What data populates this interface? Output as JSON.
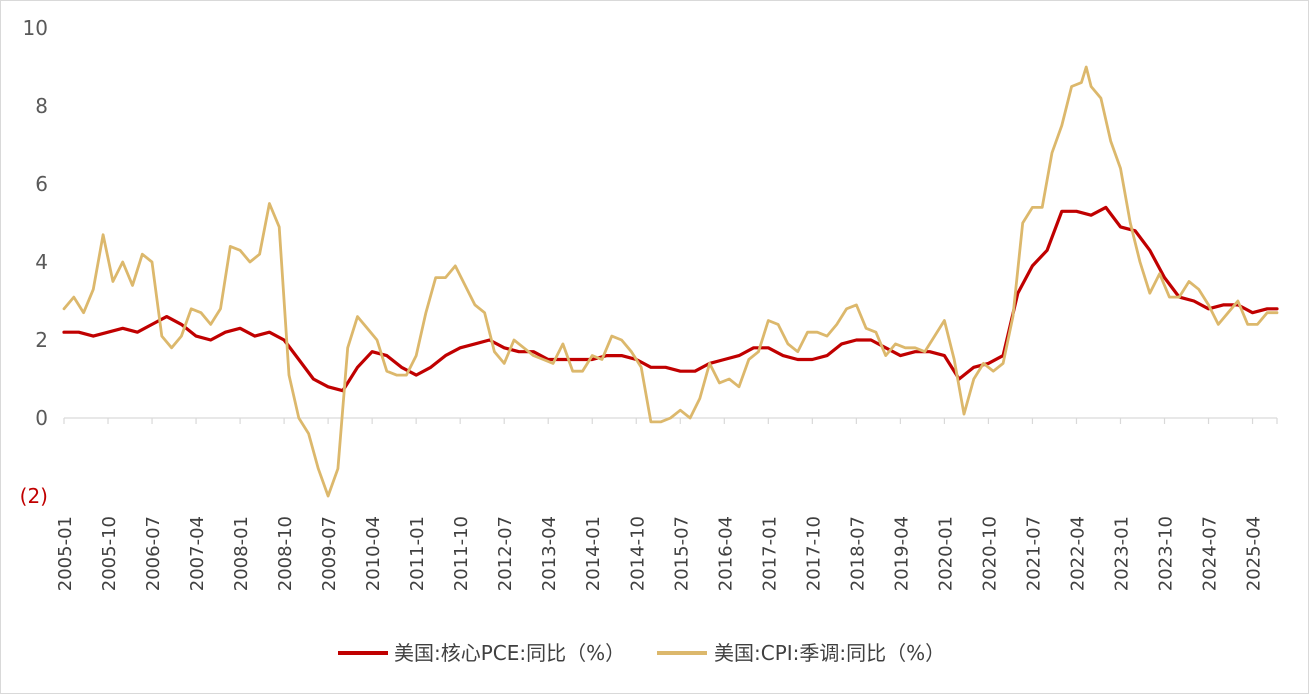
{
  "chart_data": {
    "type": "line",
    "title": "",
    "xlabel": "",
    "ylabel": "",
    "ylim": [
      -2,
      10
    ],
    "yticks": [
      -2,
      0,
      2,
      4,
      6,
      8,
      10
    ],
    "ytick_labels": [
      "(2)",
      "0",
      "2",
      "4",
      "6",
      "8",
      "10"
    ],
    "xtick_labels": [
      "2005-01",
      "2005-10",
      "2006-07",
      "2007-04",
      "2008-01",
      "2008-10",
      "2009-07",
      "2010-04",
      "2011-01",
      "2011-10",
      "2012-07",
      "2013-04",
      "2014-01",
      "2014-10",
      "2015-07",
      "2016-04",
      "2017-01",
      "2017-10",
      "2018-07",
      "2019-04",
      "2020-01",
      "2020-10",
      "2021-07",
      "2022-04",
      "2023-01",
      "2023-10",
      "2024-07",
      "2025-04"
    ],
    "x_start": "2005-01",
    "x_end": "2025-09",
    "grid": false,
    "legend_position": "bottom",
    "series": [
      {
        "name": "美国:核心PCE:同比（%）",
        "color": "#c00000",
        "points": [
          [
            "2005-01",
            2.2
          ],
          [
            "2005-04",
            2.2
          ],
          [
            "2005-07",
            2.1
          ],
          [
            "2005-10",
            2.2
          ],
          [
            "2006-01",
            2.3
          ],
          [
            "2006-04",
            2.2
          ],
          [
            "2006-07",
            2.4
          ],
          [
            "2006-10",
            2.6
          ],
          [
            "2007-01",
            2.4
          ],
          [
            "2007-04",
            2.1
          ],
          [
            "2007-07",
            2.0
          ],
          [
            "2007-10",
            2.2
          ],
          [
            "2008-01",
            2.3
          ],
          [
            "2008-04",
            2.1
          ],
          [
            "2008-07",
            2.2
          ],
          [
            "2008-10",
            2.0
          ],
          [
            "2009-01",
            1.5
          ],
          [
            "2009-04",
            1.0
          ],
          [
            "2009-07",
            0.8
          ],
          [
            "2009-10",
            0.7
          ],
          [
            "2010-01",
            1.3
          ],
          [
            "2010-04",
            1.7
          ],
          [
            "2010-07",
            1.6
          ],
          [
            "2010-10",
            1.3
          ],
          [
            "2011-01",
            1.1
          ],
          [
            "2011-04",
            1.3
          ],
          [
            "2011-07",
            1.6
          ],
          [
            "2011-10",
            1.8
          ],
          [
            "2012-01",
            1.9
          ],
          [
            "2012-04",
            2.0
          ],
          [
            "2012-07",
            1.8
          ],
          [
            "2012-10",
            1.7
          ],
          [
            "2013-01",
            1.7
          ],
          [
            "2013-04",
            1.5
          ],
          [
            "2013-07",
            1.5
          ],
          [
            "2013-10",
            1.5
          ],
          [
            "2014-01",
            1.5
          ],
          [
            "2014-04",
            1.6
          ],
          [
            "2014-07",
            1.6
          ],
          [
            "2014-10",
            1.5
          ],
          [
            "2015-01",
            1.3
          ],
          [
            "2015-04",
            1.3
          ],
          [
            "2015-07",
            1.2
          ],
          [
            "2015-10",
            1.2
          ],
          [
            "2016-01",
            1.4
          ],
          [
            "2016-04",
            1.5
          ],
          [
            "2016-07",
            1.6
          ],
          [
            "2016-10",
            1.8
          ],
          [
            "2017-01",
            1.8
          ],
          [
            "2017-04",
            1.6
          ],
          [
            "2017-07",
            1.5
          ],
          [
            "2017-10",
            1.5
          ],
          [
            "2018-01",
            1.6
          ],
          [
            "2018-04",
            1.9
          ],
          [
            "2018-07",
            2.0
          ],
          [
            "2018-10",
            2.0
          ],
          [
            "2019-01",
            1.8
          ],
          [
            "2019-04",
            1.6
          ],
          [
            "2019-07",
            1.7
          ],
          [
            "2019-10",
            1.7
          ],
          [
            "2020-01",
            1.6
          ],
          [
            "2020-04",
            1.0
          ],
          [
            "2020-07",
            1.3
          ],
          [
            "2020-10",
            1.4
          ],
          [
            "2021-01",
            1.6
          ],
          [
            "2021-04",
            3.2
          ],
          [
            "2021-07",
            3.9
          ],
          [
            "2021-10",
            4.3
          ],
          [
            "2022-01",
            5.3
          ],
          [
            "2022-04",
            5.3
          ],
          [
            "2022-07",
            5.2
          ],
          [
            "2022-10",
            5.4
          ],
          [
            "2023-01",
            4.9
          ],
          [
            "2023-04",
            4.8
          ],
          [
            "2023-07",
            4.3
          ],
          [
            "2023-10",
            3.6
          ],
          [
            "2024-01",
            3.1
          ],
          [
            "2024-04",
            3.0
          ],
          [
            "2024-07",
            2.8
          ],
          [
            "2024-10",
            2.9
          ],
          [
            "2025-01",
            2.9
          ],
          [
            "2025-04",
            2.7
          ],
          [
            "2025-07",
            2.8
          ],
          [
            "2025-09",
            2.8
          ]
        ]
      },
      {
        "name": "美国:CPI:季调:同比（%）",
        "color": "#dcb86c",
        "points": [
          [
            "2005-01",
            2.8
          ],
          [
            "2005-03",
            3.1
          ],
          [
            "2005-05",
            2.7
          ],
          [
            "2005-07",
            3.3
          ],
          [
            "2005-09",
            4.7
          ],
          [
            "2005-11",
            3.5
          ],
          [
            "2006-01",
            4.0
          ],
          [
            "2006-03",
            3.4
          ],
          [
            "2006-05",
            4.2
          ],
          [
            "2006-07",
            4.0
          ],
          [
            "2006-09",
            2.1
          ],
          [
            "2006-11",
            1.8
          ],
          [
            "2007-01",
            2.1
          ],
          [
            "2007-03",
            2.8
          ],
          [
            "2007-05",
            2.7
          ],
          [
            "2007-07",
            2.4
          ],
          [
            "2007-09",
            2.8
          ],
          [
            "2007-11",
            4.4
          ],
          [
            "2008-01",
            4.3
          ],
          [
            "2008-03",
            4.0
          ],
          [
            "2008-05",
            4.2
          ],
          [
            "2008-07",
            5.5
          ],
          [
            "2008-09",
            4.9
          ],
          [
            "2008-11",
            1.1
          ],
          [
            "2009-01",
            0.0
          ],
          [
            "2009-03",
            -0.4
          ],
          [
            "2009-05",
            -1.3
          ],
          [
            "2009-07",
            -2.0
          ],
          [
            "2009-09",
            -1.3
          ],
          [
            "2009-11",
            1.8
          ],
          [
            "2010-01",
            2.6
          ],
          [
            "2010-03",
            2.3
          ],
          [
            "2010-05",
            2.0
          ],
          [
            "2010-07",
            1.2
          ],
          [
            "2010-09",
            1.1
          ],
          [
            "2010-11",
            1.1
          ],
          [
            "2011-01",
            1.6
          ],
          [
            "2011-03",
            2.7
          ],
          [
            "2011-05",
            3.6
          ],
          [
            "2011-07",
            3.6
          ],
          [
            "2011-09",
            3.9
          ],
          [
            "2011-11",
            3.4
          ],
          [
            "2012-01",
            2.9
          ],
          [
            "2012-03",
            2.7
          ],
          [
            "2012-05",
            1.7
          ],
          [
            "2012-07",
            1.4
          ],
          [
            "2012-09",
            2.0
          ],
          [
            "2012-11",
            1.8
          ],
          [
            "2013-01",
            1.6
          ],
          [
            "2013-03",
            1.5
          ],
          [
            "2013-05",
            1.4
          ],
          [
            "2013-07",
            1.9
          ],
          [
            "2013-09",
            1.2
          ],
          [
            "2013-11",
            1.2
          ],
          [
            "2014-01",
            1.6
          ],
          [
            "2014-03",
            1.5
          ],
          [
            "2014-05",
            2.1
          ],
          [
            "2014-07",
            2.0
          ],
          [
            "2014-09",
            1.7
          ],
          [
            "2014-11",
            1.3
          ],
          [
            "2015-01",
            -0.1
          ],
          [
            "2015-03",
            -0.1
          ],
          [
            "2015-05",
            0.0
          ],
          [
            "2015-07",
            0.2
          ],
          [
            "2015-09",
            0.0
          ],
          [
            "2015-11",
            0.5
          ],
          [
            "2016-01",
            1.4
          ],
          [
            "2016-03",
            0.9
          ],
          [
            "2016-05",
            1.0
          ],
          [
            "2016-07",
            0.8
          ],
          [
            "2016-09",
            1.5
          ],
          [
            "2016-11",
            1.7
          ],
          [
            "2017-01",
            2.5
          ],
          [
            "2017-03",
            2.4
          ],
          [
            "2017-05",
            1.9
          ],
          [
            "2017-07",
            1.7
          ],
          [
            "2017-09",
            2.2
          ],
          [
            "2017-11",
            2.2
          ],
          [
            "2018-01",
            2.1
          ],
          [
            "2018-03",
            2.4
          ],
          [
            "2018-05",
            2.8
          ],
          [
            "2018-07",
            2.9
          ],
          [
            "2018-09",
            2.3
          ],
          [
            "2018-11",
            2.2
          ],
          [
            "2019-01",
            1.6
          ],
          [
            "2019-03",
            1.9
          ],
          [
            "2019-05",
            1.8
          ],
          [
            "2019-07",
            1.8
          ],
          [
            "2019-09",
            1.7
          ],
          [
            "2019-11",
            2.1
          ],
          [
            "2020-01",
            2.5
          ],
          [
            "2020-03",
            1.5
          ],
          [
            "2020-05",
            0.1
          ],
          [
            "2020-07",
            1.0
          ],
          [
            "2020-09",
            1.4
          ],
          [
            "2020-11",
            1.2
          ],
          [
            "2021-01",
            1.4
          ],
          [
            "2021-03",
            2.6
          ],
          [
            "2021-05",
            5.0
          ],
          [
            "2021-07",
            5.4
          ],
          [
            "2021-09",
            5.4
          ],
          [
            "2021-11",
            6.8
          ],
          [
            "2022-01",
            7.5
          ],
          [
            "2022-03",
            8.5
          ],
          [
            "2022-05",
            8.6
          ],
          [
            "2022-06",
            9.0
          ],
          [
            "2022-07",
            8.5
          ],
          [
            "2022-09",
            8.2
          ],
          [
            "2022-11",
            7.1
          ],
          [
            "2023-01",
            6.4
          ],
          [
            "2023-03",
            5.0
          ],
          [
            "2023-05",
            4.0
          ],
          [
            "2023-07",
            3.2
          ],
          [
            "2023-09",
            3.7
          ],
          [
            "2023-11",
            3.1
          ],
          [
            "2024-01",
            3.1
          ],
          [
            "2024-03",
            3.5
          ],
          [
            "2024-05",
            3.3
          ],
          [
            "2024-07",
            2.9
          ],
          [
            "2024-09",
            2.4
          ],
          [
            "2024-11",
            2.7
          ],
          [
            "2025-01",
            3.0
          ],
          [
            "2025-03",
            2.4
          ],
          [
            "2025-05",
            2.4
          ],
          [
            "2025-07",
            2.7
          ],
          [
            "2025-09",
            2.7
          ]
        ]
      }
    ]
  }
}
